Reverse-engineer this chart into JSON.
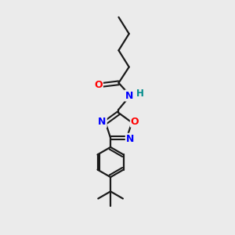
{
  "background_color": "#ebebeb",
  "bond_color": "#1a1a1a",
  "atom_colors": {
    "O": "#ff0000",
    "N": "#0000ff",
    "H": "#008b8b"
  },
  "figsize": [
    3.0,
    3.0
  ],
  "dpi": 100
}
